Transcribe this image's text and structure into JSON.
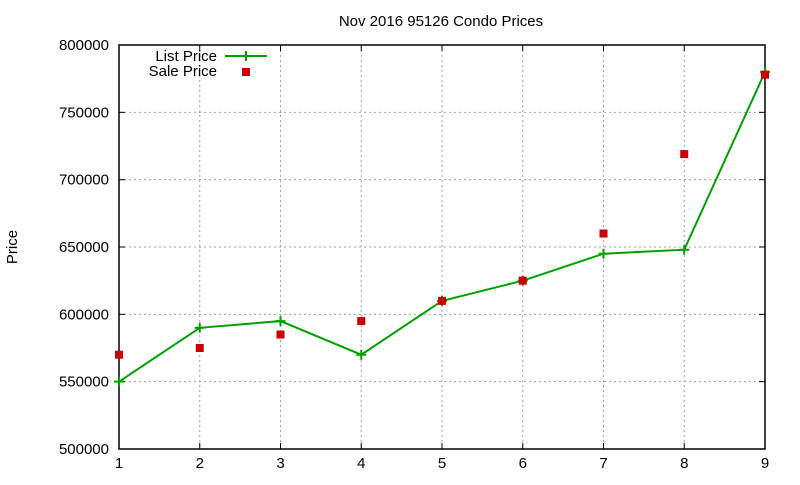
{
  "chart_data": {
    "type": "line",
    "title": "Nov 2016 95126 Condo Prices",
    "xlabel": "",
    "ylabel": "Price",
    "x": [
      1,
      2,
      3,
      4,
      5,
      6,
      7,
      8,
      9
    ],
    "xlim": [
      1,
      9
    ],
    "ylim": [
      500000,
      800000
    ],
    "xticks": [
      "1",
      "2",
      "3",
      "4",
      "5",
      "6",
      "7",
      "8",
      "9"
    ],
    "yticks": [
      "500000",
      "550000",
      "600000",
      "650000",
      "700000",
      "750000",
      "800000"
    ],
    "grid": true,
    "legend_position": "top-left",
    "series": [
      {
        "name": "List Price",
        "style": "line+points",
        "marker": "plus",
        "color": "#00a000",
        "values": [
          550000,
          590000,
          595000,
          570000,
          610000,
          625000,
          645000,
          648000,
          780000
        ]
      },
      {
        "name": "Sale Price",
        "style": "points",
        "marker": "square",
        "color": "#cc0000",
        "values": [
          570000,
          575000,
          585000,
          595000,
          610000,
          625000,
          660000,
          719000,
          778000
        ]
      }
    ]
  }
}
